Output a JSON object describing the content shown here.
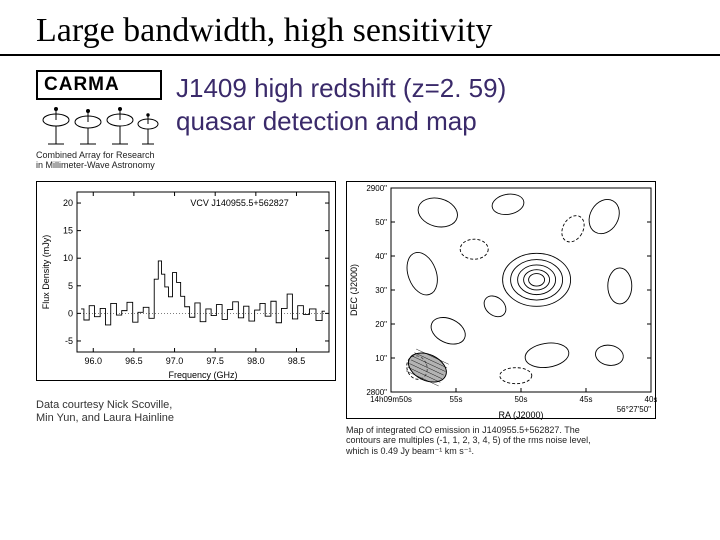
{
  "title": "Large bandwidth, high sensitivity",
  "logo": {
    "text": "CARMA",
    "caption_l1": "Combined Array for Research",
    "caption_l2": "in Millimeter-Wave Astronomy"
  },
  "figtitle_l1": "J1409 high redshift (z=2. 59)",
  "figtitle_l2": "quasar detection and map",
  "spectrum": {
    "source_label": "VCV J140955.5+562827",
    "xlabel": "Frequency (GHz)",
    "ylabel": "Flux Density (mJy)",
    "xticks": [
      "96.0",
      "96.5",
      "97.0",
      "97.5",
      "98.0",
      "98.5"
    ],
    "yticks": [
      "-5",
      "0",
      "5",
      "10",
      "15",
      "20"
    ],
    "xlim": [
      95.8,
      98.9
    ],
    "ylim": [
      -7,
      22
    ],
    "line_color": "#000000",
    "data": [
      [
        95.85,
        0.8
      ],
      [
        95.92,
        -1.2
      ],
      [
        95.98,
        1.4
      ],
      [
        96.05,
        -0.6
      ],
      [
        96.12,
        0.9
      ],
      [
        96.18,
        -2.1
      ],
      [
        96.25,
        1.8
      ],
      [
        96.32,
        -0.3
      ],
      [
        96.38,
        0.5
      ],
      [
        96.45,
        2.0
      ],
      [
        96.52,
        -1.6
      ],
      [
        96.58,
        0.2
      ],
      [
        96.65,
        1.1
      ],
      [
        96.72,
        -0.9
      ],
      [
        96.78,
        6.2
      ],
      [
        96.82,
        9.5
      ],
      [
        96.86,
        7.1
      ],
      [
        96.9,
        4.8
      ],
      [
        96.95,
        3.0
      ],
      [
        97.0,
        7.4
      ],
      [
        97.05,
        5.6
      ],
      [
        97.1,
        3.1
      ],
      [
        97.15,
        1.2
      ],
      [
        97.22,
        -0.7
      ],
      [
        97.28,
        1.9
      ],
      [
        97.35,
        -1.5
      ],
      [
        97.42,
        0.8
      ],
      [
        97.48,
        -0.4
      ],
      [
        97.55,
        1.6
      ],
      [
        97.62,
        -1.1
      ],
      [
        97.68,
        0.7
      ],
      [
        97.75,
        2.1
      ],
      [
        97.82,
        -0.8
      ],
      [
        97.88,
        1.3
      ],
      [
        97.95,
        -1.4
      ],
      [
        98.02,
        0.6
      ],
      [
        98.08,
        1.8
      ],
      [
        98.15,
        -0.5
      ],
      [
        98.22,
        2.2
      ],
      [
        98.28,
        -1.7
      ],
      [
        98.35,
        0.9
      ],
      [
        98.42,
        3.5
      ],
      [
        98.48,
        -1.0
      ],
      [
        98.55,
        1.4
      ],
      [
        98.62,
        -0.2
      ],
      [
        98.7,
        0.8
      ],
      [
        98.78,
        -1.3
      ],
      [
        98.85,
        0.4
      ]
    ]
  },
  "contour": {
    "xlabel": "RA (J2000)",
    "ylabel": "DEC (J2000)",
    "ra_ticks": [
      "14h09m50s",
      "55s",
      "50s",
      "45s",
      "40s"
    ],
    "ra_bottom_right": "56°27'50\"",
    "dec_ticks": [
      "2900\"",
      "50\"",
      "40\"",
      "30\"",
      "20\"",
      "10\"",
      "2800\""
    ],
    "contour_color": "#000000",
    "beam_fill": "#808080"
  },
  "credit_l1": "Data courtesy Nick Scoville,",
  "credit_l2": "Min Yun, and Laura Hainline",
  "mapcap_l1": "Map of integrated CO emission in J140955.5+562827. The",
  "mapcap_l2": "contours are multiples (-1, 1, 2, 3, 4, 5) of the rms noise level,",
  "mapcap_l3": "which is 0.49 Jy beam⁻¹ km s⁻¹."
}
